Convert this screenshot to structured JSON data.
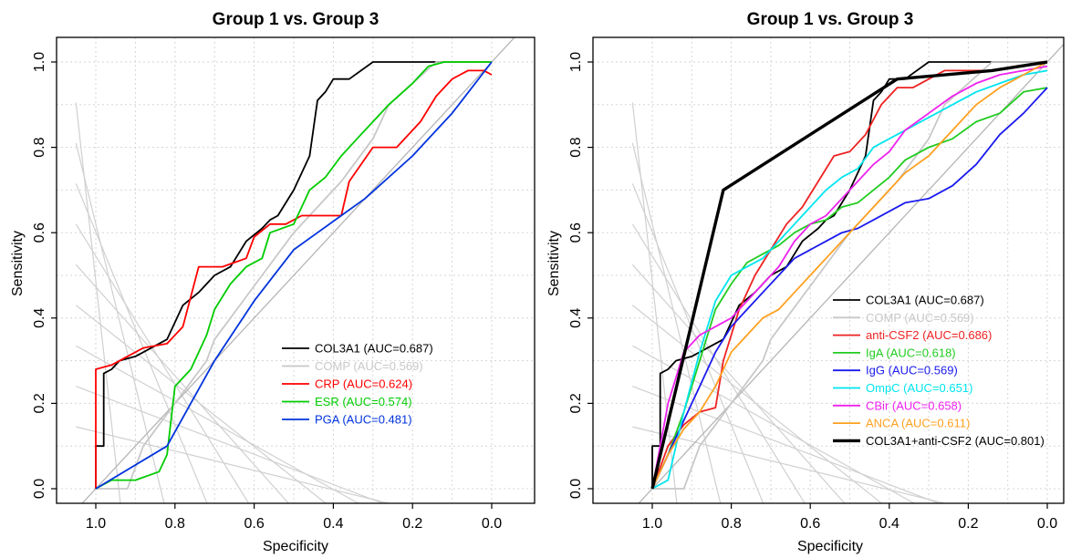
{
  "chart_data": [
    {
      "type": "line",
      "title": "Group 1 vs. Group 3",
      "xlabel": "Specificity",
      "ylabel": "Sensitivity",
      "x_reversed": true,
      "xlim": [
        1.0,
        0.0
      ],
      "ylim": [
        0.0,
        1.0
      ],
      "x_ticks": [
        "1.0",
        "0.8",
        "0.6",
        "0.4",
        "0.2",
        "0.0"
      ],
      "y_ticks": [
        "0.0",
        "0.2",
        "0.4",
        "0.6",
        "0.8",
        "1.0"
      ],
      "grid": true,
      "legend_position": "bottom-right",
      "series": [
        {
          "name": "COL3A1 (AUC=0.687)",
          "color": "#000000",
          "x": [
            1.0,
            1.0,
            0.98,
            0.98,
            0.96,
            0.94,
            0.9,
            0.86,
            0.82,
            0.8,
            0.78,
            0.74,
            0.7,
            0.66,
            0.62,
            0.58,
            0.56,
            0.54,
            0.5,
            0.48,
            0.46,
            0.44,
            0.42,
            0.4,
            0.36,
            0.3,
            0.0
          ],
          "y": [
            0.0,
            0.1,
            0.1,
            0.27,
            0.28,
            0.3,
            0.31,
            0.33,
            0.35,
            0.39,
            0.43,
            0.46,
            0.5,
            0.52,
            0.58,
            0.61,
            0.63,
            0.64,
            0.7,
            0.74,
            0.78,
            0.91,
            0.93,
            0.96,
            0.96,
            1.0,
            1.0
          ]
        },
        {
          "name": "COMP (AUC=0.569)",
          "color": "#c8c8c8",
          "x": [
            1.0,
            0.92,
            0.88,
            0.84,
            0.8,
            0.76,
            0.72,
            0.7,
            0.66,
            0.62,
            0.58,
            0.54,
            0.5,
            0.44,
            0.38,
            0.3,
            0.26,
            0.2,
            0.14,
            0.0
          ],
          "y": [
            0.0,
            0.0,
            0.1,
            0.15,
            0.2,
            0.25,
            0.3,
            0.35,
            0.4,
            0.45,
            0.5,
            0.55,
            0.6,
            0.66,
            0.72,
            0.82,
            0.9,
            0.95,
            1.0,
            1.0
          ]
        },
        {
          "name": "CRP (AUC=0.624)",
          "color": "#ff0000",
          "x": [
            1.0,
            1.0,
            0.96,
            0.92,
            0.88,
            0.82,
            0.78,
            0.74,
            0.68,
            0.62,
            0.6,
            0.56,
            0.52,
            0.48,
            0.44,
            0.38,
            0.36,
            0.3,
            0.24,
            0.18,
            0.14,
            0.1,
            0.06,
            0.02,
            0.0
          ],
          "y": [
            0.0,
            0.28,
            0.29,
            0.31,
            0.33,
            0.34,
            0.38,
            0.52,
            0.52,
            0.54,
            0.59,
            0.62,
            0.62,
            0.64,
            0.64,
            0.64,
            0.72,
            0.8,
            0.8,
            0.86,
            0.92,
            0.96,
            0.98,
            0.98,
            0.97
          ]
        },
        {
          "name": "ESR (AUC=0.574)",
          "color": "#00cc00",
          "x": [
            1.0,
            0.96,
            0.9,
            0.84,
            0.82,
            0.8,
            0.76,
            0.72,
            0.7,
            0.66,
            0.62,
            0.58,
            0.56,
            0.5,
            0.46,
            0.42,
            0.38,
            0.34,
            0.3,
            0.26,
            0.2,
            0.16,
            0.12,
            0.0
          ],
          "y": [
            0.0,
            0.02,
            0.02,
            0.04,
            0.08,
            0.24,
            0.28,
            0.36,
            0.42,
            0.48,
            0.52,
            0.54,
            0.6,
            0.62,
            0.7,
            0.73,
            0.78,
            0.82,
            0.86,
            0.9,
            0.95,
            0.99,
            1.0,
            1.0
          ]
        },
        {
          "name": "PGA (AUC=0.481)",
          "color": "#0033dd",
          "x": [
            1.0,
            0.82,
            0.7,
            0.6,
            0.5,
            0.44,
            0.32,
            0.2,
            0.1,
            0.0
          ],
          "y": [
            0.0,
            0.1,
            0.3,
            0.44,
            0.56,
            0.6,
            0.68,
            0.78,
            0.88,
            1.0
          ]
        }
      ]
    },
    {
      "type": "line",
      "title": "Group 1 vs. Group 3",
      "xlabel": "Specificity",
      "ylabel": "Sensitivity",
      "x_reversed": true,
      "xlim": [
        1.0,
        0.0
      ],
      "ylim": [
        0.0,
        1.0
      ],
      "x_ticks": [
        "1.0",
        "0.8",
        "0.6",
        "0.4",
        "0.2",
        "0.0"
      ],
      "y_ticks": [
        "0.0",
        "0.2",
        "0.4",
        "0.6",
        "0.8",
        "1.0"
      ],
      "grid": true,
      "legend_position": "bottom-right",
      "series": [
        {
          "name": "COL3A1 (AUC=0.687)",
          "color": "#000000",
          "x": [
            1.0,
            1.0,
            0.98,
            0.98,
            0.96,
            0.94,
            0.9,
            0.86,
            0.82,
            0.8,
            0.78,
            0.74,
            0.7,
            0.66,
            0.62,
            0.58,
            0.56,
            0.54,
            0.5,
            0.48,
            0.46,
            0.44,
            0.42,
            0.4,
            0.36,
            0.3,
            0.0
          ],
          "y": [
            0.0,
            0.1,
            0.1,
            0.27,
            0.28,
            0.3,
            0.31,
            0.33,
            0.35,
            0.39,
            0.43,
            0.46,
            0.5,
            0.52,
            0.58,
            0.61,
            0.63,
            0.64,
            0.7,
            0.74,
            0.78,
            0.91,
            0.93,
            0.96,
            0.96,
            1.0,
            1.0
          ]
        },
        {
          "name": "COMP (AUC=0.569)",
          "color": "#c8c8c8",
          "x": [
            1.0,
            0.92,
            0.88,
            0.84,
            0.8,
            0.76,
            0.72,
            0.7,
            0.66,
            0.62,
            0.58,
            0.54,
            0.5,
            0.44,
            0.38,
            0.3,
            0.26,
            0.2,
            0.14,
            0.0
          ],
          "y": [
            0.0,
            0.0,
            0.1,
            0.15,
            0.2,
            0.25,
            0.3,
            0.35,
            0.4,
            0.45,
            0.5,
            0.55,
            0.6,
            0.66,
            0.72,
            0.82,
            0.9,
            0.95,
            1.0,
            1.0
          ]
        },
        {
          "name": "anti-CSF2 (AUC=0.686)",
          "color": "#ee2222",
          "x": [
            1.0,
            0.96,
            0.92,
            0.88,
            0.84,
            0.82,
            0.78,
            0.74,
            0.7,
            0.66,
            0.62,
            0.58,
            0.54,
            0.5,
            0.46,
            0.42,
            0.38,
            0.34,
            0.3,
            0.26,
            0.2,
            0.14,
            0.08,
            0.0
          ],
          "y": [
            0.0,
            0.1,
            0.15,
            0.18,
            0.19,
            0.3,
            0.42,
            0.5,
            0.56,
            0.62,
            0.66,
            0.72,
            0.78,
            0.79,
            0.83,
            0.9,
            0.94,
            0.94,
            0.96,
            0.98,
            0.98,
            0.98,
            0.99,
            1.0
          ]
        },
        {
          "name": "IgA (AUC=0.618)",
          "color": "#22cc22",
          "x": [
            1.0,
            0.96,
            0.92,
            0.88,
            0.84,
            0.8,
            0.76,
            0.72,
            0.68,
            0.64,
            0.6,
            0.56,
            0.52,
            0.48,
            0.44,
            0.4,
            0.36,
            0.3,
            0.24,
            0.18,
            0.12,
            0.06,
            0.0
          ],
          "y": [
            0.0,
            0.08,
            0.18,
            0.3,
            0.42,
            0.48,
            0.53,
            0.55,
            0.57,
            0.6,
            0.62,
            0.63,
            0.66,
            0.67,
            0.7,
            0.73,
            0.77,
            0.8,
            0.82,
            0.86,
            0.88,
            0.93,
            0.94
          ]
        },
        {
          "name": "IgG (AUC=0.569)",
          "color": "#1a1aee",
          "x": [
            1.0,
            0.96,
            0.92,
            0.88,
            0.84,
            0.8,
            0.76,
            0.72,
            0.68,
            0.64,
            0.6,
            0.56,
            0.52,
            0.48,
            0.44,
            0.4,
            0.36,
            0.3,
            0.24,
            0.18,
            0.12,
            0.06,
            0.0
          ],
          "y": [
            0.0,
            0.08,
            0.16,
            0.24,
            0.32,
            0.38,
            0.42,
            0.46,
            0.5,
            0.54,
            0.56,
            0.58,
            0.6,
            0.61,
            0.63,
            0.65,
            0.67,
            0.68,
            0.71,
            0.76,
            0.83,
            0.88,
            0.94
          ]
        },
        {
          "name": "OmpC (AUC=0.651)",
          "color": "#00e5ee",
          "x": [
            1.0,
            0.96,
            0.92,
            0.88,
            0.84,
            0.8,
            0.76,
            0.72,
            0.68,
            0.64,
            0.6,
            0.56,
            0.52,
            0.48,
            0.44,
            0.4,
            0.36,
            0.3,
            0.24,
            0.18,
            0.12,
            0.06,
            0.0
          ],
          "y": [
            0.0,
            0.02,
            0.18,
            0.32,
            0.44,
            0.5,
            0.52,
            0.54,
            0.58,
            0.62,
            0.66,
            0.7,
            0.73,
            0.75,
            0.8,
            0.82,
            0.84,
            0.87,
            0.9,
            0.93,
            0.95,
            0.97,
            0.98
          ]
        },
        {
          "name": "CBir (AUC=0.658)",
          "color": "#ee22ee",
          "x": [
            1.0,
            0.96,
            0.92,
            0.88,
            0.84,
            0.8,
            0.76,
            0.72,
            0.68,
            0.64,
            0.6,
            0.56,
            0.52,
            0.48,
            0.44,
            0.4,
            0.36,
            0.3,
            0.24,
            0.18,
            0.12,
            0.06,
            0.0
          ],
          "y": [
            0.0,
            0.2,
            0.32,
            0.36,
            0.38,
            0.4,
            0.44,
            0.48,
            0.52,
            0.58,
            0.62,
            0.64,
            0.68,
            0.72,
            0.76,
            0.79,
            0.84,
            0.88,
            0.92,
            0.95,
            0.97,
            0.98,
            0.99
          ]
        },
        {
          "name": "ANCA (AUC=0.611)",
          "color": "#ffa020",
          "x": [
            1.0,
            0.96,
            0.92,
            0.88,
            0.84,
            0.8,
            0.76,
            0.72,
            0.68,
            0.64,
            0.6,
            0.56,
            0.52,
            0.48,
            0.44,
            0.4,
            0.36,
            0.3,
            0.24,
            0.18,
            0.12,
            0.06,
            0.0
          ],
          "y": [
            0.0,
            0.08,
            0.14,
            0.18,
            0.24,
            0.32,
            0.36,
            0.4,
            0.42,
            0.46,
            0.5,
            0.54,
            0.58,
            0.62,
            0.66,
            0.7,
            0.74,
            0.78,
            0.84,
            0.9,
            0.94,
            0.97,
            1.0
          ]
        },
        {
          "name": "COL3A1+anti-CSF2 (AUC=0.801)",
          "color": "#000000",
          "bold": true,
          "x": [
            1.0,
            0.82,
            0.38,
            0.14,
            0.0
          ],
          "y": [
            0.0,
            0.7,
            0.96,
            0.98,
            1.0
          ]
        }
      ]
    }
  ]
}
